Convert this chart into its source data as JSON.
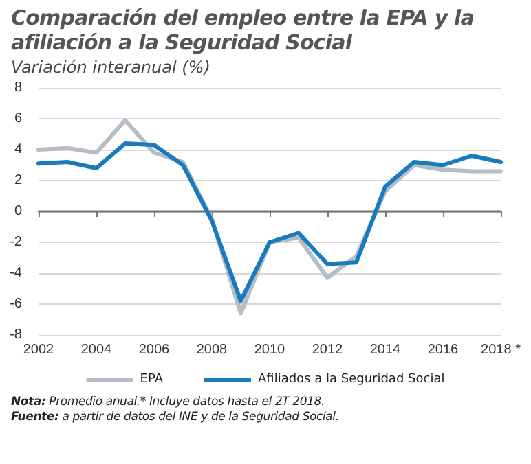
{
  "chart_data": {
    "type": "line",
    "title": "Comparación del empleo entre la EPA y la afiliación a la Seguridad Social",
    "subtitle": "Variación interanual (%)",
    "categories": [
      "2002",
      null,
      "2004",
      null,
      "2006",
      null,
      "2008",
      null,
      "2010",
      null,
      "2012",
      null,
      "2014",
      null,
      "2016",
      null,
      "2018 *"
    ],
    "series": [
      {
        "name": "EPA",
        "color": "#b5bec6",
        "values": [
          4.0,
          4.1,
          3.8,
          5.9,
          3.8,
          3.2,
          -0.5,
          -6.6,
          -2.0,
          -1.7,
          -4.3,
          -2.9,
          1.3,
          3.0,
          2.7,
          2.6,
          2.6
        ]
      },
      {
        "name": "Afiliados a la Seguridad Social",
        "color": "#1a7abf",
        "values": [
          3.1,
          3.2,
          2.8,
          4.4,
          4.3,
          3.0,
          -0.6,
          -5.8,
          -2.0,
          -1.4,
          -3.4,
          -3.3,
          1.6,
          3.2,
          3.0,
          3.6,
          3.2
        ]
      }
    ],
    "ylim": [
      -8,
      8
    ],
    "yticks": [
      -8,
      -6,
      -4,
      -2,
      0,
      2,
      4,
      6,
      8
    ],
    "grid": "y",
    "legend": "bottom",
    "marker": "none",
    "line_style": "solid",
    "annotations": [
      "Nota: Promedio anual.* Incluye datos hasta el 2T 2018.",
      "Fuente: a partir de datos del INE y de la Seguridad Social."
    ]
  }
}
